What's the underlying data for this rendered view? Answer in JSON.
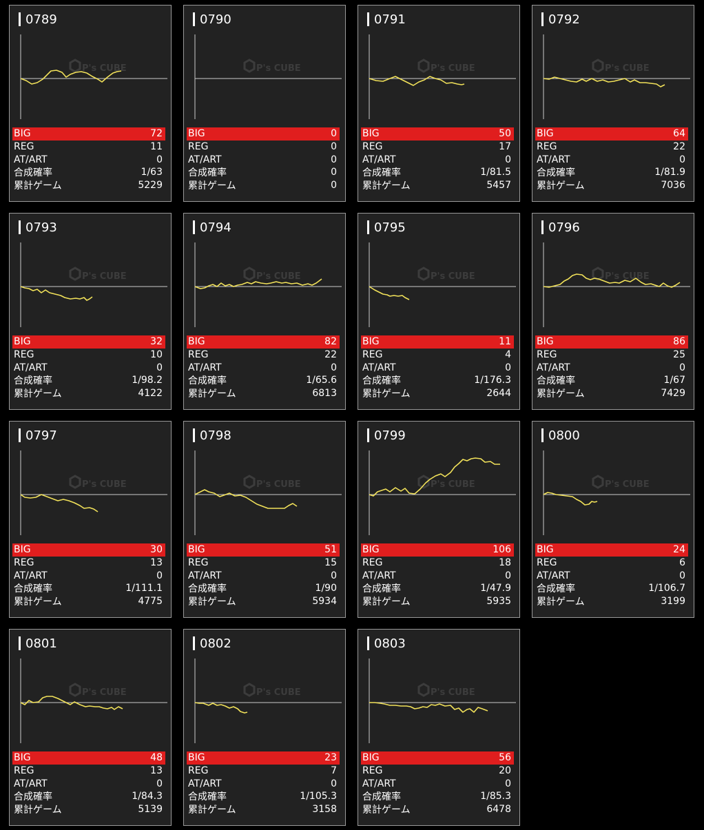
{
  "labels": {
    "big": "BIG",
    "reg": "REG",
    "at": "AT/ART",
    "prob": "合成確率",
    "games": "累計ゲーム"
  },
  "colors": {
    "card_bg": "#222222",
    "big_bar": "#e01e1e",
    "graph_line": "#f2e25a",
    "axis": "#cccccc"
  },
  "watermark": {
    "brand": "P's CUBE"
  },
  "machines": [
    {
      "id": "0789",
      "big": "72",
      "reg": "11",
      "at": "0",
      "prob": "1/63",
      "games": "5229",
      "graph": [
        [
          0,
          0
        ],
        [
          8,
          -3
        ],
        [
          16,
          -8
        ],
        [
          24,
          -6
        ],
        [
          32,
          -1
        ],
        [
          38,
          5
        ],
        [
          44,
          11
        ],
        [
          52,
          12
        ],
        [
          60,
          9
        ],
        [
          66,
          2
        ],
        [
          72,
          6
        ],
        [
          80,
          9
        ],
        [
          88,
          10
        ],
        [
          96,
          8
        ],
        [
          104,
          3
        ],
        [
          112,
          -1
        ],
        [
          118,
          -5
        ],
        [
          126,
          2
        ],
        [
          134,
          8
        ],
        [
          140,
          10
        ],
        [
          146,
          11
        ]
      ]
    },
    {
      "id": "0790",
      "big": "0",
      "reg": "0",
      "at": "0",
      "prob": "0",
      "games": "0",
      "graph": []
    },
    {
      "id": "0791",
      "big": "50",
      "reg": "17",
      "at": "0",
      "prob": "1/81.5",
      "games": "5457",
      "graph": [
        [
          0,
          0
        ],
        [
          10,
          -3
        ],
        [
          20,
          -4
        ],
        [
          30,
          0
        ],
        [
          38,
          3
        ],
        [
          46,
          -1
        ],
        [
          56,
          -6
        ],
        [
          64,
          -10
        ],
        [
          72,
          -5
        ],
        [
          80,
          -2
        ],
        [
          88,
          3
        ],
        [
          96,
          0
        ],
        [
          104,
          -2
        ],
        [
          112,
          -7
        ],
        [
          120,
          -6
        ],
        [
          128,
          -8
        ],
        [
          134,
          -9
        ],
        [
          138,
          -8
        ]
      ]
    },
    {
      "id": "0792",
      "big": "64",
      "reg": "22",
      "at": "0",
      "prob": "1/81.9",
      "games": "7036",
      "graph": [
        [
          0,
          0
        ],
        [
          8,
          -1
        ],
        [
          16,
          2
        ],
        [
          24,
          0
        ],
        [
          32,
          -2
        ],
        [
          40,
          -4
        ],
        [
          48,
          -5
        ],
        [
          56,
          -1
        ],
        [
          62,
          -4
        ],
        [
          70,
          0
        ],
        [
          78,
          -4
        ],
        [
          86,
          -2
        ],
        [
          94,
          -5
        ],
        [
          102,
          -4
        ],
        [
          110,
          -2
        ],
        [
          118,
          0
        ],
        [
          126,
          -5
        ],
        [
          132,
          -2
        ],
        [
          140,
          -6
        ],
        [
          148,
          -6
        ],
        [
          156,
          -7
        ],
        [
          164,
          -8
        ],
        [
          170,
          -12
        ],
        [
          176,
          -9
        ]
      ]
    },
    {
      "id": "0793",
      "big": "32",
      "reg": "10",
      "at": "0",
      "prob": "1/98.2",
      "games": "4122",
      "graph": [
        [
          0,
          0
        ],
        [
          6,
          -2
        ],
        [
          12,
          -3
        ],
        [
          18,
          -6
        ],
        [
          24,
          -4
        ],
        [
          30,
          -9
        ],
        [
          36,
          -5
        ],
        [
          42,
          -9
        ],
        [
          50,
          -11
        ],
        [
          58,
          -13
        ],
        [
          64,
          -16
        ],
        [
          72,
          -18
        ],
        [
          80,
          -17
        ],
        [
          86,
          -18
        ],
        [
          92,
          -16
        ],
        [
          96,
          -20
        ],
        [
          100,
          -18
        ],
        [
          104,
          -15
        ]
      ]
    },
    {
      "id": "0794",
      "big": "82",
      "reg": "22",
      "at": "0",
      "prob": "1/65.6",
      "games": "6813",
      "graph": [
        [
          0,
          0
        ],
        [
          8,
          -3
        ],
        [
          14,
          -2
        ],
        [
          20,
          1
        ],
        [
          26,
          3
        ],
        [
          32,
          0
        ],
        [
          38,
          5
        ],
        [
          44,
          1
        ],
        [
          50,
          3
        ],
        [
          56,
          0
        ],
        [
          62,
          2
        ],
        [
          68,
          3
        ],
        [
          76,
          6
        ],
        [
          82,
          4
        ],
        [
          88,
          7
        ],
        [
          96,
          5
        ],
        [
          104,
          4
        ],
        [
          110,
          5
        ],
        [
          118,
          7
        ],
        [
          126,
          5
        ],
        [
          132,
          6
        ],
        [
          140,
          4
        ],
        [
          148,
          5
        ],
        [
          156,
          2
        ],
        [
          164,
          4
        ],
        [
          170,
          2
        ],
        [
          176,
          5
        ],
        [
          184,
          11
        ]
      ]
    },
    {
      "id": "0795",
      "big": "11",
      "reg": "4",
      "at": "0",
      "prob": "1/176.3",
      "games": "2644",
      "graph": [
        [
          0,
          0
        ],
        [
          8,
          -5
        ],
        [
          14,
          -8
        ],
        [
          20,
          -11
        ],
        [
          26,
          -12
        ],
        [
          30,
          -14
        ],
        [
          36,
          -13
        ],
        [
          42,
          -14
        ],
        [
          48,
          -13
        ],
        [
          52,
          -16
        ],
        [
          58,
          -19
        ]
      ]
    },
    {
      "id": "0796",
      "big": "86",
      "reg": "25",
      "at": "0",
      "prob": "1/67",
      "games": "7429",
      "graph": [
        [
          0,
          0
        ],
        [
          8,
          -1
        ],
        [
          16,
          1
        ],
        [
          24,
          3
        ],
        [
          30,
          8
        ],
        [
          36,
          11
        ],
        [
          42,
          16
        ],
        [
          48,
          18
        ],
        [
          56,
          17
        ],
        [
          62,
          12
        ],
        [
          68,
          10
        ],
        [
          74,
          12
        ],
        [
          80,
          11
        ],
        [
          88,
          8
        ],
        [
          96,
          5
        ],
        [
          104,
          6
        ],
        [
          110,
          5
        ],
        [
          118,
          9
        ],
        [
          126,
          7
        ],
        [
          134,
          12
        ],
        [
          142,
          6
        ],
        [
          148,
          3
        ],
        [
          156,
          4
        ],
        [
          162,
          2
        ],
        [
          168,
          0
        ],
        [
          174,
          5
        ],
        [
          180,
          1
        ],
        [
          186,
          -1
        ],
        [
          192,
          2
        ],
        [
          198,
          6
        ]
      ]
    },
    {
      "id": "0797",
      "big": "30",
      "reg": "13",
      "at": "0",
      "prob": "1/111.1",
      "games": "4775",
      "graph": [
        [
          0,
          0
        ],
        [
          6,
          -4
        ],
        [
          14,
          -5
        ],
        [
          22,
          -4
        ],
        [
          30,
          0
        ],
        [
          38,
          -3
        ],
        [
          46,
          -6
        ],
        [
          54,
          -9
        ],
        [
          62,
          -7
        ],
        [
          70,
          -9
        ],
        [
          78,
          -12
        ],
        [
          86,
          -16
        ],
        [
          92,
          -20
        ],
        [
          100,
          -19
        ],
        [
          106,
          -21
        ],
        [
          112,
          -25
        ]
      ]
    },
    {
      "id": "0798",
      "big": "51",
      "reg": "15",
      "at": "0",
      "prob": "1/90",
      "games": "5934",
      "graph": [
        [
          0,
          0
        ],
        [
          8,
          4
        ],
        [
          14,
          7
        ],
        [
          20,
          4
        ],
        [
          28,
          2
        ],
        [
          36,
          -3
        ],
        [
          42,
          -1
        ],
        [
          50,
          2
        ],
        [
          58,
          -2
        ],
        [
          66,
          -1
        ],
        [
          74,
          -4
        ],
        [
          82,
          -9
        ],
        [
          90,
          -14
        ],
        [
          98,
          -17
        ],
        [
          106,
          -20
        ],
        [
          114,
          -20
        ],
        [
          122,
          -20
        ],
        [
          130,
          -20
        ],
        [
          136,
          -16
        ],
        [
          142,
          -13
        ],
        [
          148,
          -17
        ]
      ]
    },
    {
      "id": "0799",
      "big": "106",
      "reg": "18",
      "at": "0",
      "prob": "1/47.9",
      "games": "5935",
      "graph": [
        [
          0,
          0
        ],
        [
          6,
          -2
        ],
        [
          12,
          4
        ],
        [
          18,
          6
        ],
        [
          24,
          8
        ],
        [
          30,
          4
        ],
        [
          38,
          10
        ],
        [
          46,
          5
        ],
        [
          52,
          9
        ],
        [
          58,
          2
        ],
        [
          66,
          1
        ],
        [
          74,
          8
        ],
        [
          82,
          17
        ],
        [
          88,
          22
        ],
        [
          96,
          27
        ],
        [
          104,
          30
        ],
        [
          110,
          26
        ],
        [
          118,
          32
        ],
        [
          124,
          40
        ],
        [
          130,
          45
        ],
        [
          136,
          51
        ],
        [
          142,
          49
        ],
        [
          148,
          52
        ],
        [
          154,
          53
        ],
        [
          162,
          52
        ],
        [
          168,
          47
        ],
        [
          176,
          48
        ],
        [
          182,
          44
        ],
        [
          190,
          44
        ]
      ]
    },
    {
      "id": "0800",
      "big": "24",
      "reg": "6",
      "at": "0",
      "prob": "1/106.7",
      "games": "3199",
      "graph": [
        [
          0,
          0
        ],
        [
          6,
          3
        ],
        [
          12,
          2
        ],
        [
          18,
          0
        ],
        [
          26,
          -1
        ],
        [
          34,
          -2
        ],
        [
          42,
          -3
        ],
        [
          48,
          -7
        ],
        [
          54,
          -10
        ],
        [
          60,
          -15
        ],
        [
          66,
          -14
        ],
        [
          70,
          -10
        ],
        [
          74,
          -11
        ],
        [
          78,
          -10
        ]
      ]
    },
    {
      "id": "0801",
      "big": "48",
      "reg": "13",
      "at": "0",
      "prob": "1/84.3",
      "games": "5139",
      "graph": [
        [
          0,
          0
        ],
        [
          6,
          -3
        ],
        [
          12,
          3
        ],
        [
          18,
          0
        ],
        [
          26,
          1
        ],
        [
          32,
          7
        ],
        [
          38,
          9
        ],
        [
          46,
          9
        ],
        [
          54,
          6
        ],
        [
          60,
          3
        ],
        [
          66,
          0
        ],
        [
          72,
          -3
        ],
        [
          78,
          1
        ],
        [
          86,
          -3
        ],
        [
          94,
          -6
        ],
        [
          100,
          -5
        ],
        [
          108,
          -6
        ],
        [
          114,
          -6
        ],
        [
          120,
          -8
        ],
        [
          126,
          -9
        ],
        [
          132,
          -7
        ],
        [
          136,
          -10
        ],
        [
          142,
          -6
        ],
        [
          148,
          -9
        ]
      ]
    },
    {
      "id": "0802",
      "big": "23",
      "reg": "7",
      "at": "0",
      "prob": "1/105.3",
      "games": "3158",
      "graph": [
        [
          0,
          0
        ],
        [
          6,
          -1
        ],
        [
          12,
          -1
        ],
        [
          20,
          -4
        ],
        [
          26,
          -1
        ],
        [
          32,
          -4
        ],
        [
          38,
          -3
        ],
        [
          44,
          -5
        ],
        [
          50,
          -8
        ],
        [
          56,
          -6
        ],
        [
          62,
          -9
        ],
        [
          66,
          -13
        ],
        [
          72,
          -15
        ],
        [
          76,
          -14
        ]
      ]
    },
    {
      "id": "0803",
      "big": "56",
      "reg": "20",
      "at": "0",
      "prob": "1/85.3",
      "games": "6478",
      "graph": [
        [
          0,
          0
        ],
        [
          8,
          0
        ],
        [
          16,
          -1
        ],
        [
          22,
          -2
        ],
        [
          30,
          -4
        ],
        [
          38,
          -4
        ],
        [
          46,
          -5
        ],
        [
          54,
          -5
        ],
        [
          60,
          -6
        ],
        [
          66,
          -9
        ],
        [
          72,
          -8
        ],
        [
          78,
          -6
        ],
        [
          84,
          -7
        ],
        [
          90,
          -3
        ],
        [
          96,
          -4
        ],
        [
          102,
          -2
        ],
        [
          110,
          -5
        ],
        [
          118,
          -4
        ],
        [
          124,
          -10
        ],
        [
          130,
          -8
        ],
        [
          136,
          -14
        ],
        [
          142,
          -10
        ],
        [
          146,
          -9
        ],
        [
          152,
          -14
        ],
        [
          158,
          -7
        ],
        [
          164,
          -9
        ],
        [
          172,
          -12
        ]
      ]
    }
  ]
}
